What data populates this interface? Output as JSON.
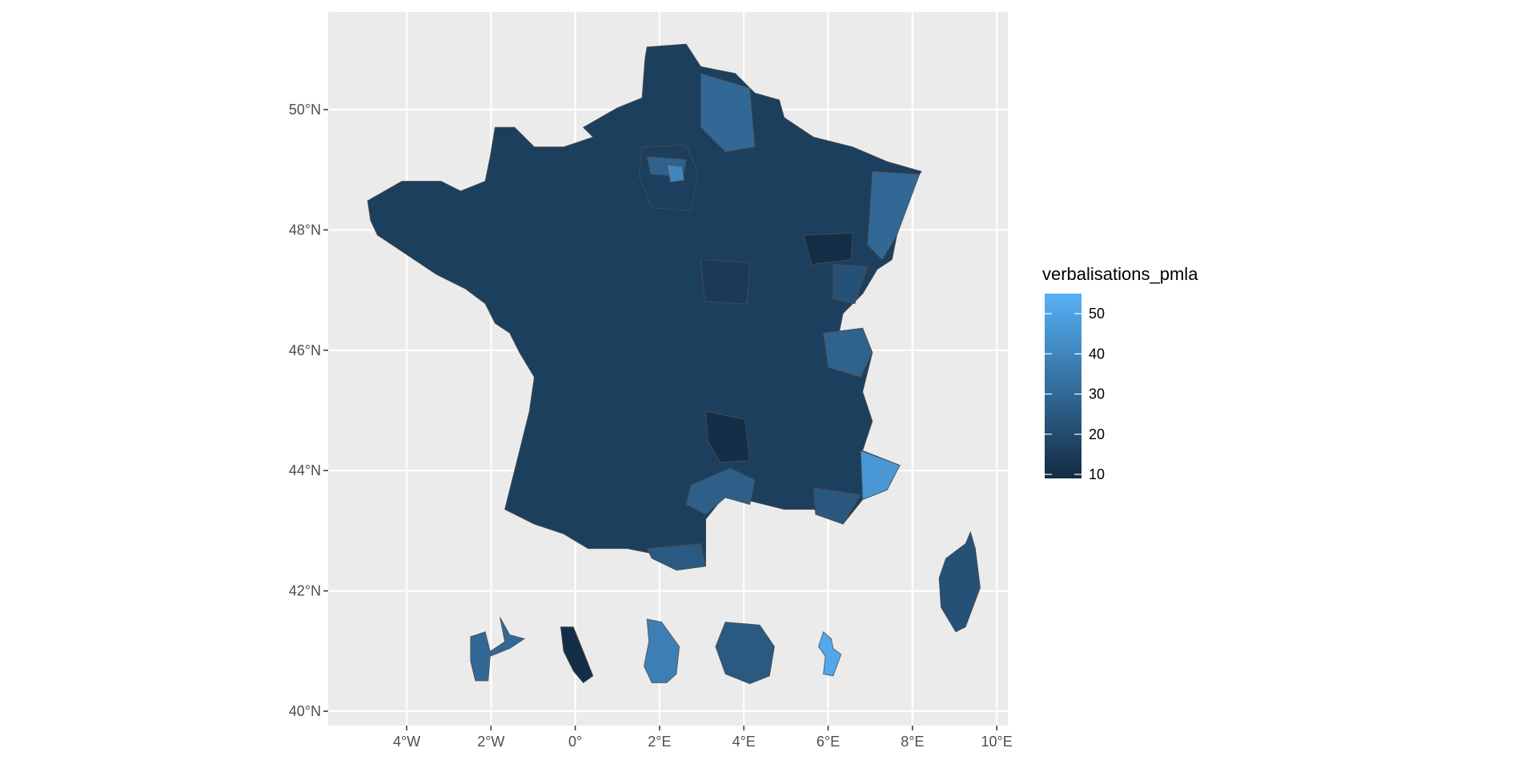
{
  "chart_data": {
    "type": "map",
    "title": "",
    "xlabel": "",
    "ylabel": "",
    "x_ticks": [
      "4°W",
      "2°W",
      "0°",
      "2°E",
      "4°E",
      "6°E",
      "8°E",
      "10°E"
    ],
    "x_tick_values": [
      -4,
      -2,
      0,
      2,
      4,
      6,
      8,
      10
    ],
    "y_ticks": [
      "40°N",
      "42°N",
      "44°N",
      "46°N",
      "48°N",
      "50°N"
    ],
    "y_tick_values": [
      40,
      42,
      44,
      46,
      48,
      50
    ],
    "xlim": [
      -5.8,
      10.3
    ],
    "ylim": [
      39.8,
      51.6
    ],
    "grid": true,
    "legend": {
      "title": "verbalisations_pmla",
      "position": "right",
      "ticks": [
        "10",
        "20",
        "30",
        "40",
        "50"
      ],
      "tick_values": [
        10,
        20,
        30,
        40,
        50
      ],
      "range": [
        9,
        55
      ],
      "colors": {
        "low": "#132b43",
        "high": "#56b1f7"
      }
    },
    "fill_value_base": 16,
    "regions": [
      {
        "value": 16
      },
      {
        "value": 30
      },
      {
        "value": 14
      },
      {
        "value": 28
      },
      {
        "value": 40
      },
      {
        "value": 30
      },
      {
        "value": 46
      },
      {
        "value": 27
      },
      {
        "value": 25
      },
      {
        "value": 24
      },
      {
        "value": 28
      },
      {
        "value": 10
      },
      {
        "value": 10
      },
      {
        "value": 22
      },
      {
        "value": 30
      },
      {
        "value": 38
      },
      {
        "value": 25
      },
      {
        "value": 52
      }
    ]
  }
}
